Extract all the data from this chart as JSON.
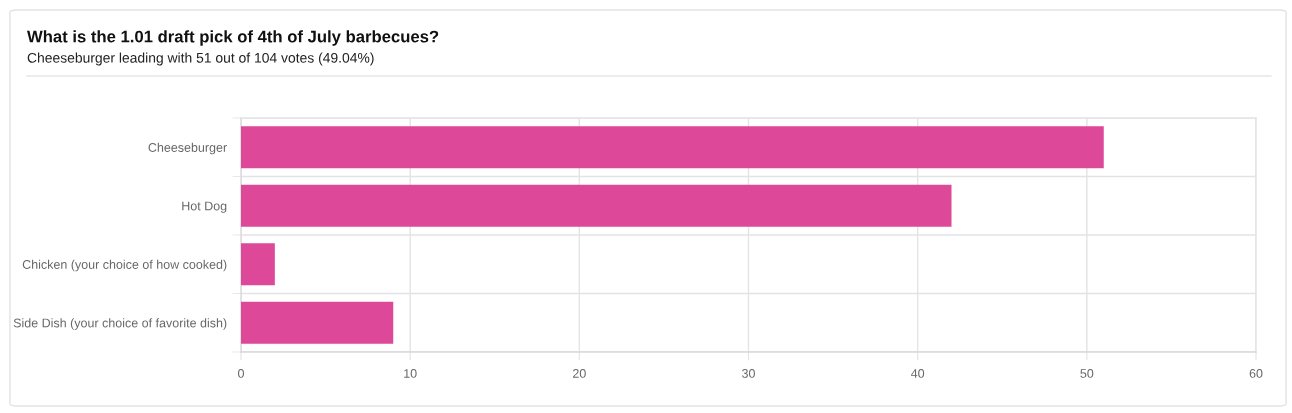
{
  "chart_data": {
    "type": "bar",
    "orientation": "horizontal",
    "title": "What is the 1.01 draft pick of 4th of July barbecues?",
    "subtitle": "Cheeseburger leading with 51 out of 104 votes (49.04%)",
    "categories": [
      "Cheeseburger",
      "Hot Dog",
      "Chicken (your choice of how cooked)",
      "Side Dish (your choice of favorite dish)"
    ],
    "values": [
      51,
      42,
      2,
      9
    ],
    "color": "#de4899",
    "xlim": [
      0,
      60
    ],
    "xticks": [
      0,
      10,
      20,
      30,
      40,
      50,
      60
    ],
    "grid": true
  }
}
